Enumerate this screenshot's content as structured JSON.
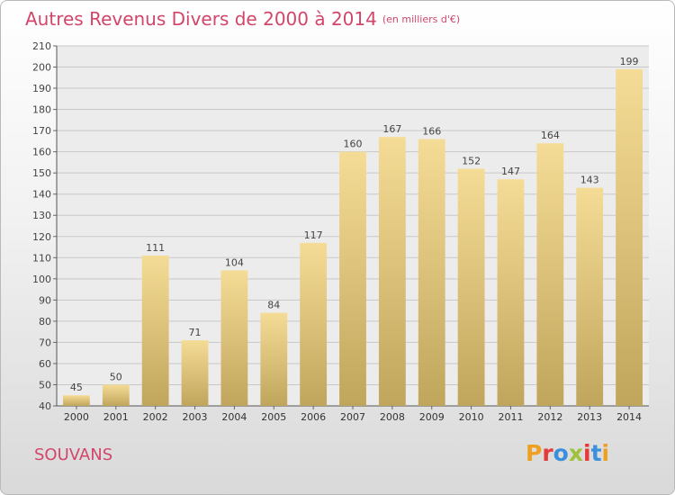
{
  "header": {
    "title": "Autres Revenus Divers de 2000 à 2014",
    "unit": "(en milliers d'€)"
  },
  "footer": {
    "city": "SOUVANS",
    "brand": "Proxiti"
  },
  "colors": {
    "title": "#d2466a",
    "bar_top": "#f5dc96",
    "bar_bottom": "#c0a55c",
    "grid": "#c8c8c8"
  },
  "chart_data": {
    "type": "bar",
    "title": "Autres Revenus Divers de 2000 à 2014",
    "subtitle": "(en milliers d'€)",
    "xlabel": "",
    "ylabel": "",
    "categories": [
      "2000",
      "2001",
      "2002",
      "2003",
      "2004",
      "2005",
      "2006",
      "2007",
      "2008",
      "2009",
      "2010",
      "2011",
      "2012",
      "2013",
      "2014"
    ],
    "values": [
      45,
      50,
      111,
      71,
      104,
      84,
      117,
      160,
      167,
      166,
      152,
      147,
      164,
      143,
      199
    ],
    "ylim": [
      40,
      210
    ],
    "yticks": [
      40,
      50,
      60,
      70,
      80,
      90,
      100,
      110,
      120,
      130,
      140,
      150,
      160,
      170,
      180,
      190,
      200,
      210
    ],
    "grid": true,
    "legend": "none"
  }
}
